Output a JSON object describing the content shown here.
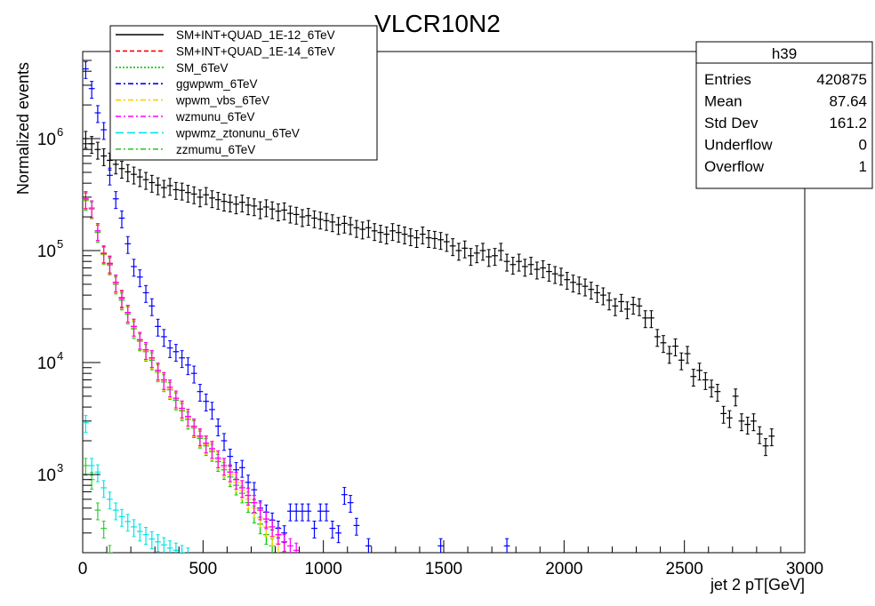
{
  "chart_data": {
    "type": "scatter",
    "title": "VLCR10N2",
    "xlabel": "jet 2 pT[GeV]",
    "ylabel": "Normalized events",
    "xlim": [
      0,
      3000
    ],
    "ylim": [
      200,
      6000000
    ],
    "y_scale": "log",
    "grid": false,
    "legend_position": "top-left",
    "x_ticks": [
      "0",
      "500",
      "1000",
      "1500",
      "2000",
      "2500",
      "3000"
    ],
    "y_ticks": [
      {
        "value": 1000,
        "label": "10",
        "exp": "3"
      },
      {
        "value": 10000,
        "label": "10",
        "exp": "4"
      },
      {
        "value": 100000,
        "label": "10",
        "exp": "5"
      },
      {
        "value": 1000000,
        "label": "10",
        "exp": "6"
      }
    ],
    "stats_box": {
      "name": "h39",
      "rows": [
        {
          "label": "Entries",
          "value": "420875"
        },
        {
          "label": "Mean",
          "value": "87.64"
        },
        {
          "label": "Std Dev",
          "value": "161.2"
        },
        {
          "label": "Underflow",
          "value": "0"
        },
        {
          "label": "Overflow",
          "value": "1"
        }
      ]
    },
    "series": [
      {
        "name": "SM+INT+QUAD_1E-12_6TeV",
        "color": "#000000",
        "line_style": "solid",
        "x": [
          12.5,
          37.5,
          62.5,
          87.5,
          112.5,
          137.5,
          162.5,
          187.5,
          212.5,
          237.5,
          262.5,
          287.5,
          312.5,
          337.5,
          362.5,
          387.5,
          412.5,
          437.5,
          462.5,
          487.5,
          512.5,
          537.5,
          562.5,
          587.5,
          612.5,
          637.5,
          662.5,
          687.5,
          712.5,
          737.5,
          762.5,
          787.5,
          812.5,
          837.5,
          862.5,
          887.5,
          912.5,
          937.5,
          962.5,
          987.5,
          1012.5,
          1037.5,
          1062.5,
          1087.5,
          1112.5,
          1137.5,
          1162.5,
          1187.5,
          1212.5,
          1237.5,
          1262.5,
          1287.5,
          1312.5,
          1337.5,
          1362.5,
          1387.5,
          1412.5,
          1437.5,
          1462.5,
          1487.5,
          1512.5,
          1537.5,
          1562.5,
          1587.5,
          1612.5,
          1637.5,
          1662.5,
          1687.5,
          1712.5,
          1737.5,
          1762.5,
          1787.5,
          1812.5,
          1837.5,
          1862.5,
          1887.5,
          1912.5,
          1937.5,
          1962.5,
          1987.5,
          2012.5,
          2037.5,
          2062.5,
          2087.5,
          2112.5,
          2137.5,
          2162.5,
          2187.5,
          2212.5,
          2237.5,
          2262.5,
          2287.5,
          2312.5,
          2337.5,
          2362.5,
          2387.5,
          2412.5,
          2437.5,
          2462.5,
          2487.5,
          2512.5,
          2537.5,
          2562.5,
          2587.5,
          2612.5,
          2637.5,
          2662.5,
          2687.5,
          2712.5,
          2737.5,
          2762.5,
          2787.5,
          2812.5,
          2837.5,
          2862.5
        ],
        "y": [
          1000000,
          900000,
          800000,
          700000,
          640000,
          590000,
          540000,
          505000,
          480000,
          455000,
          430000,
          405000,
          385000,
          365000,
          380000,
          350000,
          345000,
          330000,
          320000,
          300000,
          315000,
          295000,
          285000,
          275000,
          270000,
          260000,
          270000,
          255000,
          250000,
          235000,
          245000,
          235000,
          225000,
          230000,
          215000,
          210000,
          200000,
          205000,
          195000,
          190000,
          185000,
          180000,
          170000,
          175000,
          170000,
          160000,
          155000,
          160000,
          150000,
          145000,
          140000,
          150000,
          145000,
          140000,
          135000,
          130000,
          140000,
          130000,
          128000,
          125000,
          120000,
          110000,
          100000,
          105000,
          90000,
          95000,
          100000,
          88000,
          90000,
          100000,
          80000,
          75000,
          80000,
          72000,
          75000,
          68000,
          70000,
          65000,
          62000,
          60000,
          55000,
          52000,
          50000,
          48000,
          45000,
          42000,
          40000,
          36000,
          32000,
          35000,
          30000,
          33000,
          32000,
          25000,
          25000,
          17000,
          15000,
          12000,
          14000,
          10500,
          12000,
          7500,
          8500,
          7000,
          6000,
          5500,
          3500,
          3200,
          5000,
          3000,
          2800,
          3000,
          2300,
          1800,
          2200
        ]
      },
      {
        "name": "SM+INT+QUAD_1E-14_6TeV",
        "color": "#ff0000",
        "line_style": "dashed",
        "x": [
          12.5,
          37.5,
          62.5,
          87.5,
          112.5,
          137.5,
          162.5,
          187.5,
          212.5,
          237.5,
          262.5,
          287.5,
          312.5,
          337.5,
          362.5,
          387.5,
          412.5,
          437.5,
          462.5,
          487.5,
          512.5,
          537.5,
          562.5,
          587.5,
          612.5,
          637.5,
          662.5,
          687.5,
          712.5,
          737.5,
          762.5,
          787.5,
          812.5,
          837.5
        ],
        "y": [
          290000,
          240000,
          150000,
          95000,
          77000,
          52000,
          38000,
          28000,
          21000,
          16000,
          13000,
          11000,
          8500,
          7000,
          6000,
          4800,
          3900,
          3300,
          2700,
          2200,
          1900,
          1700,
          1400,
          1200,
          1050,
          900,
          760,
          650,
          560,
          480,
          400,
          340,
          290,
          250
        ]
      },
      {
        "name": "SM_6TeV",
        "color": "#00cc00",
        "line_style": "dotted",
        "x": [
          12.5,
          37.5,
          62.5,
          87.5,
          112.5,
          137.5,
          162.5,
          187.5,
          212.5,
          237.5,
          262.5,
          287.5,
          312.5,
          337.5,
          362.5,
          387.5,
          412.5,
          437.5,
          462.5,
          487.5,
          512.5,
          537.5,
          562.5,
          587.5,
          612.5,
          637.5,
          662.5,
          687.5,
          712.5,
          737.5,
          762.5,
          787.5
        ],
        "y": [
          280000,
          235000,
          145000,
          92000,
          74000,
          50000,
          36000,
          27000,
          20000,
          15500,
          12500,
          10500,
          8200,
          6700,
          5700,
          4600,
          3700,
          3100,
          2600,
          2100,
          1800,
          1600,
          1300,
          1100,
          950,
          800,
          680,
          560,
          450,
          360,
          290,
          230
        ]
      },
      {
        "name": "ggwpwm_6TeV",
        "color": "#0000ff",
        "line_style": "dash-dot",
        "x": [
          12.5,
          37.5,
          62.5,
          87.5,
          112.5,
          137.5,
          162.5,
          187.5,
          212.5,
          237.5,
          262.5,
          287.5,
          312.5,
          337.5,
          362.5,
          387.5,
          412.5,
          437.5,
          462.5,
          487.5,
          512.5,
          537.5,
          562.5,
          587.5,
          612.5,
          637.5,
          662.5,
          687.5,
          712.5,
          737.5,
          762.5,
          787.5,
          812.5,
          837.5,
          862.5,
          887.5,
          912.5,
          937.5,
          962.5,
          987.5,
          1012.5,
          1037.5,
          1062.5,
          1087.5,
          1112.5,
          1137.5,
          1187.5,
          1487.5,
          1762.5
        ],
        "y": [
          4200000,
          2800000,
          1700000,
          1200000,
          470000,
          290000,
          195000,
          115000,
          72000,
          58000,
          42000,
          32000,
          21000,
          17000,
          13500,
          12500,
          11000,
          9500,
          8000,
          5500,
          4500,
          3800,
          2700,
          2000,
          1450,
          1100,
          1150,
          850,
          730,
          500,
          460,
          390,
          330,
          300,
          470,
          470,
          470,
          470,
          330,
          470,
          470,
          330,
          300,
          660,
          560,
          350,
          230,
          230,
          230
        ]
      },
      {
        "name": "wpwm_vbs_6TeV",
        "color": "#ffcc00",
        "line_style": "dash-dot",
        "x": [
          12.5,
          37.5,
          62.5,
          87.5,
          112.5,
          137.5,
          162.5,
          187.5,
          212.5,
          237.5,
          262.5,
          287.5,
          312.5,
          337.5,
          362.5,
          387.5,
          412.5,
          437.5,
          462.5,
          487.5,
          512.5,
          537.5,
          562.5,
          587.5,
          612.5,
          637.5,
          662.5,
          687.5,
          712.5,
          737.5,
          762.5,
          787.5,
          812.5
        ],
        "y": [
          285000,
          238000,
          148000,
          93000,
          75000,
          51000,
          37000,
          27500,
          20500,
          15800,
          12700,
          10800,
          8300,
          6800,
          5800,
          4700,
          3800,
          3200,
          2650,
          2150,
          1850,
          1650,
          1350,
          1150,
          1000,
          850,
          720,
          600,
          500,
          410,
          340,
          280,
          240
        ]
      },
      {
        "name": "wzmunu_6TeV",
        "color": "#ff00ff",
        "line_style": "dash-dot",
        "x": [
          12.5,
          37.5,
          62.5,
          87.5,
          112.5,
          137.5,
          162.5,
          187.5,
          212.5,
          237.5,
          262.5,
          287.5,
          312.5,
          337.5,
          362.5,
          387.5,
          412.5,
          437.5,
          462.5,
          487.5,
          512.5,
          537.5,
          562.5,
          587.5,
          612.5,
          637.5,
          662.5,
          687.5,
          712.5,
          737.5,
          762.5,
          787.5,
          812.5,
          837.5,
          862.5,
          887.5
        ],
        "y": [
          288000,
          240000,
          150000,
          94000,
          76000,
          52000,
          37500,
          28000,
          21000,
          16000,
          13000,
          11000,
          8500,
          7000,
          6000,
          4800,
          3900,
          3300,
          2700,
          2200,
          1900,
          1700,
          1400,
          1200,
          1050,
          900,
          760,
          650,
          560,
          480,
          400,
          340,
          290,
          250,
          230,
          210
        ]
      },
      {
        "name": "wpwmz_ztonunu_6TeV",
        "color": "#00e5e5",
        "line_style": "long-dash",
        "x": [
          12.5,
          37.5,
          62.5,
          87.5,
          112.5,
          137.5,
          162.5,
          187.5,
          212.5,
          237.5,
          262.5,
          287.5,
          312.5,
          337.5,
          362.5,
          387.5,
          412.5,
          437.5
        ],
        "y": [
          2900,
          1200,
          1050,
          760,
          600,
          480,
          420,
          380,
          340,
          310,
          290,
          265,
          250,
          235,
          220,
          210,
          200,
          190
        ]
      },
      {
        "name": "zzmumu_6TeV",
        "color": "#33cc33",
        "line_style": "dash-dot",
        "x": [
          12.5,
          37.5,
          62.5,
          87.5,
          112.5
        ],
        "y": [
          1200,
          900,
          480,
          330,
          200
        ]
      }
    ]
  }
}
